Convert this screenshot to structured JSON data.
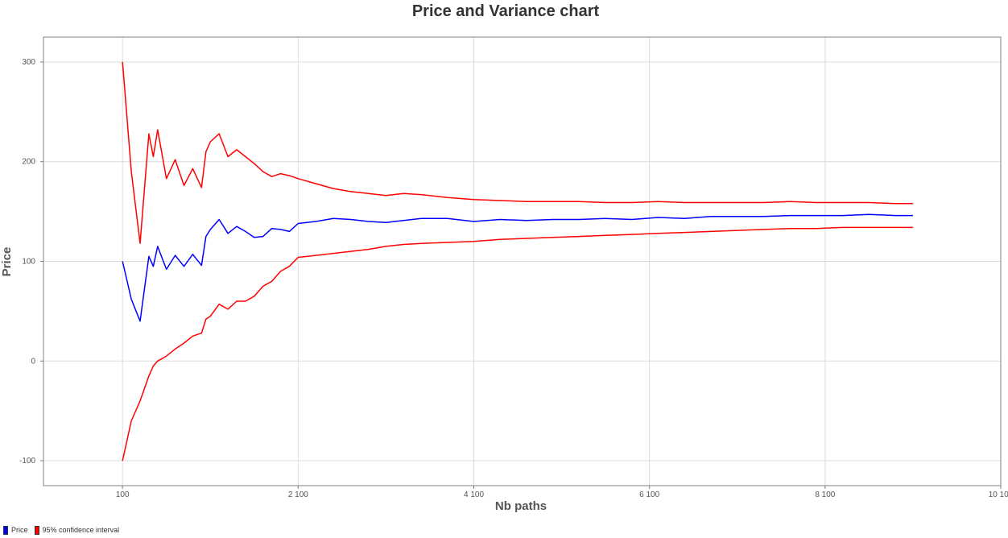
{
  "chart_data": {
    "type": "line",
    "title": "Price and Variance chart",
    "xlabel": "Nb paths",
    "ylabel": "Price",
    "xlim": [
      -800,
      10100
    ],
    "ylim": [
      -125,
      325
    ],
    "x_ticks": [
      100,
      2100,
      4100,
      6100,
      8100,
      10100
    ],
    "x_tick_labels": [
      "100",
      "2 100",
      "4 100",
      "6 100",
      "8 100",
      "10 100"
    ],
    "y_ticks": [
      -100,
      0,
      100,
      200,
      300
    ],
    "y_tick_labels": [
      "-100",
      "0",
      "100",
      "200",
      "300"
    ],
    "grid": true,
    "legend_position": "bottom-left",
    "series": [
      {
        "name": "Price",
        "color": "#0000ff",
        "legend_group": 0,
        "x": [
          100,
          200,
          300,
          400,
          450,
          500,
          600,
          700,
          800,
          900,
          1000,
          1050,
          1100,
          1200,
          1300,
          1400,
          1500,
          1600,
          1700,
          1800,
          1900,
          2000,
          2100,
          2300,
          2500,
          2700,
          2900,
          3100,
          3300,
          3500,
          3800,
          4100,
          4400,
          4700,
          5000,
          5300,
          5600,
          5900,
          6200,
          6500,
          6800,
          7100,
          7400,
          7700,
          8000,
          8300,
          8600,
          8900,
          9100
        ],
        "values": [
          100,
          62,
          40,
          105,
          95,
          115,
          92,
          106,
          95,
          107,
          96,
          125,
          132,
          142,
          128,
          135,
          130,
          124,
          125,
          133,
          132,
          130,
          138,
          140,
          143,
          142,
          140,
          139,
          141,
          143,
          143,
          140,
          142,
          141,
          142,
          142,
          143,
          142,
          144,
          143,
          145,
          145,
          145,
          146,
          146,
          146,
          147,
          146,
          146
        ]
      },
      {
        "name": "95% confidence interval",
        "color": "#ff0000",
        "legend_group": 1,
        "x": [
          100,
          200,
          300,
          400,
          450,
          500,
          600,
          700,
          800,
          900,
          1000,
          1050,
          1100,
          1200,
          1300,
          1400,
          1500,
          1600,
          1700,
          1800,
          1900,
          2000,
          2100,
          2300,
          2500,
          2700,
          2900,
          3100,
          3300,
          3500,
          3800,
          4100,
          4400,
          4700,
          5000,
          5300,
          5600,
          5900,
          6200,
          6500,
          6800,
          7100,
          7400,
          7700,
          8000,
          8300,
          8600,
          8900,
          9100
        ],
        "values": [
          300,
          190,
          118,
          228,
          205,
          232,
          183,
          202,
          176,
          193,
          174,
          210,
          220,
          228,
          205,
          212,
          205,
          198,
          190,
          185,
          188,
          186,
          183,
          178,
          173,
          170,
          168,
          166,
          168,
          167,
          164,
          162,
          161,
          160,
          160,
          160,
          159,
          159,
          160,
          159,
          159,
          159,
          159,
          160,
          159,
          159,
          159,
          158,
          158
        ]
      },
      {
        "name": "95% confidence interval",
        "color": "#ff0000",
        "legend_group": 1,
        "x": [
          100,
          200,
          300,
          400,
          450,
          500,
          600,
          700,
          800,
          900,
          1000,
          1050,
          1100,
          1200,
          1300,
          1400,
          1500,
          1600,
          1700,
          1800,
          1900,
          2000,
          2100,
          2300,
          2500,
          2700,
          2900,
          3100,
          3300,
          3500,
          3800,
          4100,
          4400,
          4700,
          5000,
          5300,
          5600,
          5900,
          6200,
          6500,
          6800,
          7100,
          7400,
          7700,
          8000,
          8300,
          8600,
          8900,
          9100
        ],
        "values": [
          -100,
          -60,
          -40,
          -15,
          -5,
          0,
          5,
          12,
          18,
          25,
          28,
          42,
          45,
          57,
          52,
          60,
          60,
          65,
          75,
          80,
          90,
          95,
          104,
          106,
          108,
          110,
          112,
          115,
          117,
          118,
          119,
          120,
          122,
          123,
          124,
          125,
          126,
          127,
          128,
          129,
          130,
          131,
          132,
          133,
          133,
          134,
          134,
          134,
          134
        ]
      }
    ]
  },
  "legend": {
    "items": [
      {
        "label": "Price",
        "color": "#0000ff"
      },
      {
        "label": "95% confidence interval",
        "color": "#ff0000"
      }
    ]
  }
}
